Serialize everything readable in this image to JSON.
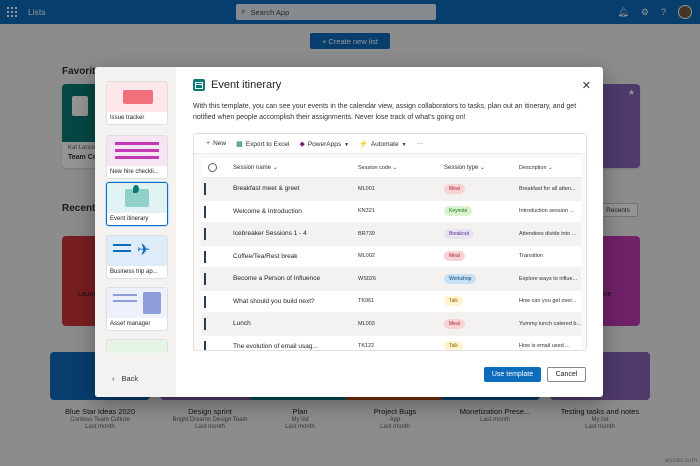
{
  "topbar": {
    "app_name": "Lists",
    "search_placeholder": "Search App",
    "waffle_icon": "waffle-icon",
    "bell_icon": "bell-icon",
    "gear_icon": "gear-icon",
    "help_icon": "help-icon"
  },
  "page": {
    "create_button": "+ Create new list",
    "favorites_title": "Favorites",
    "recent_title": "Recent",
    "recents_button": "Recents",
    "favorites": [
      {
        "owner": "Kat Larson",
        "name": "Team Con"
      }
    ],
    "recent_partial": {
      "left": "Launc",
      "right": "ove"
    },
    "bottom": [
      {
        "title": "Blue Star Ideas 2020",
        "sub1": "Contoso Team Culture",
        "sub2": "Last month"
      },
      {
        "title": "Design sprint",
        "sub1": "Bright Dreams Design Team",
        "sub2": "Last month"
      },
      {
        "title": "Plan",
        "sub1": "My list",
        "sub2": "Last month"
      },
      {
        "title": "Project Bugs",
        "sub1": "App",
        "sub2": "Last month"
      },
      {
        "title": "Monetization Prese...",
        "sub1": "Last month",
        "sub2": ""
      },
      {
        "title": "Testing tasks and notes",
        "sub1": "My list",
        "sub2": "Last month"
      }
    ]
  },
  "modal": {
    "title": "Event itinerary",
    "description": "With this template, you can see your events in the calendar view, assign collaborators to tasks, plan out an itinerary, and get notified when people accomplish their assignments. Never lose track of what's going on!",
    "templates": [
      {
        "label": "Issue tracker",
        "selected": false
      },
      {
        "label": "New hire checkli...",
        "selected": false
      },
      {
        "label": "Event itinerary",
        "selected": true
      },
      {
        "label": "Business trip ap...",
        "selected": false
      },
      {
        "label": "Asset manager",
        "selected": false
      }
    ],
    "back_label": "Back",
    "use_template": "Use template",
    "cancel": "Cancel",
    "toolbar": {
      "new": "New",
      "export": "Export to Excel",
      "powerapps": "PowerApps",
      "automate": "Automate",
      "more": "···"
    },
    "columns": {
      "name": "Session name",
      "code": "Session code",
      "type": "Session type",
      "desc": "Description"
    },
    "rows": [
      {
        "name": "Breakfast meet & greet",
        "code": "ML001",
        "type": "Meal",
        "desc": "Breakfast for all atten...",
        "chat": false
      },
      {
        "name": "Welcome & Introduction",
        "code": "KN321",
        "type": "Keynote",
        "desc": "Introduction session ...",
        "chat": true
      },
      {
        "name": "Icebreaker Sessions 1 - 4",
        "code": "BR739",
        "type": "Breakout",
        "desc": "Attendees divide into ...",
        "chat": false
      },
      {
        "name": "Coffee/Tea/Rest break",
        "code": "ML002",
        "type": "Meal",
        "desc": "Transition",
        "chat": false
      },
      {
        "name": "Become a Person of Influence",
        "code": "WS026",
        "type": "Workshop",
        "desc": "Explore ways to influe...",
        "chat": false
      },
      {
        "name": "What should you build next?",
        "code": "TK961",
        "type": "Talk",
        "desc": "How can you get over...",
        "chat": true
      },
      {
        "name": "Lunch",
        "code": "ML003",
        "type": "Meal",
        "desc": "Yummy lunch catered b...",
        "chat": true
      },
      {
        "name": "The evolution of email usag...",
        "code": "TK122",
        "type": "Talk",
        "desc": "How is email used ...",
        "chat": false
      }
    ],
    "type_colors": {
      "Meal": {
        "bg": "#f9d2d5",
        "fg": "#a4262c"
      },
      "Keynote": {
        "bg": "#d9f2d0",
        "fg": "#107c10"
      },
      "Breakout": {
        "bg": "#e8e3f3",
        "fg": "#5c2e91"
      },
      "Workshop": {
        "bg": "#c7e0f4",
        "fg": "#004578"
      },
      "Talk": {
        "bg": "#fff4ce",
        "fg": "#8a6400"
      }
    }
  },
  "watermark": "wsxdn.com"
}
